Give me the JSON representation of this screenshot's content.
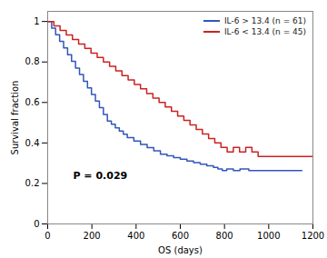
{
  "chart_data": {
    "type": "step",
    "xlabel": "OS (days)",
    "ylabel": "Survival fraction",
    "xlim": [
      0,
      1200
    ],
    "ylim": [
      0.0,
      1.05
    ],
    "xticks": [
      0,
      200,
      400,
      600,
      800,
      1000,
      1200
    ],
    "yticks": [
      0.0,
      0.2,
      0.4,
      0.6,
      0.8,
      1.0
    ],
    "grid": false,
    "legend": "upper right",
    "annotations": [
      {
        "text": "P = 0.029",
        "x": 115,
        "y": 0.22
      }
    ],
    "series": [
      {
        "name": "IL-6 > 13.4 (n = 61)",
        "color": "#3355BB",
        "x": [
          0,
          18,
          36,
          54,
          72,
          90,
          108,
          126,
          144,
          162,
          180,
          198,
          216,
          234,
          252,
          270,
          288,
          306,
          324,
          342,
          360,
          390,
          420,
          450,
          480,
          510,
          540,
          570,
          600,
          630,
          660,
          690,
          720,
          750,
          770,
          790,
          810,
          840,
          870,
          910,
          960,
          1020,
          1080,
          1150
        ],
        "values": [
          1.0,
          0.967,
          0.934,
          0.902,
          0.869,
          0.836,
          0.803,
          0.77,
          0.738,
          0.705,
          0.672,
          0.639,
          0.607,
          0.574,
          0.541,
          0.508,
          0.492,
          0.475,
          0.459,
          0.443,
          0.426,
          0.41,
          0.393,
          0.377,
          0.361,
          0.344,
          0.336,
          0.328,
          0.32,
          0.311,
          0.303,
          0.295,
          0.287,
          0.279,
          0.271,
          0.264,
          0.272,
          0.264,
          0.272,
          0.264,
          0.264,
          0.264,
          0.264,
          0.264
        ]
      },
      {
        "name": "IL-6 < 13.4 (n = 45)",
        "color": "#CC2222",
        "x": [
          0,
          28,
          56,
          84,
          112,
          140,
          168,
          196,
          224,
          252,
          280,
          308,
          336,
          364,
          392,
          420,
          448,
          476,
          504,
          532,
          560,
          588,
          616,
          644,
          672,
          700,
          728,
          756,
          784,
          812,
          840,
          868,
          896,
          924,
          952,
          980,
          1008,
          1036,
          1064,
          1092,
          1120,
          1148,
          1200
        ],
        "values": [
          1.0,
          0.978,
          0.956,
          0.933,
          0.911,
          0.889,
          0.867,
          0.844,
          0.822,
          0.8,
          0.778,
          0.756,
          0.733,
          0.711,
          0.689,
          0.667,
          0.644,
          0.622,
          0.6,
          0.578,
          0.556,
          0.533,
          0.511,
          0.489,
          0.467,
          0.444,
          0.422,
          0.4,
          0.378,
          0.356,
          0.378,
          0.356,
          0.378,
          0.356,
          0.333,
          0.333,
          0.333,
          0.333,
          0.333,
          0.333,
          0.333,
          0.333,
          0.333
        ]
      }
    ]
  }
}
